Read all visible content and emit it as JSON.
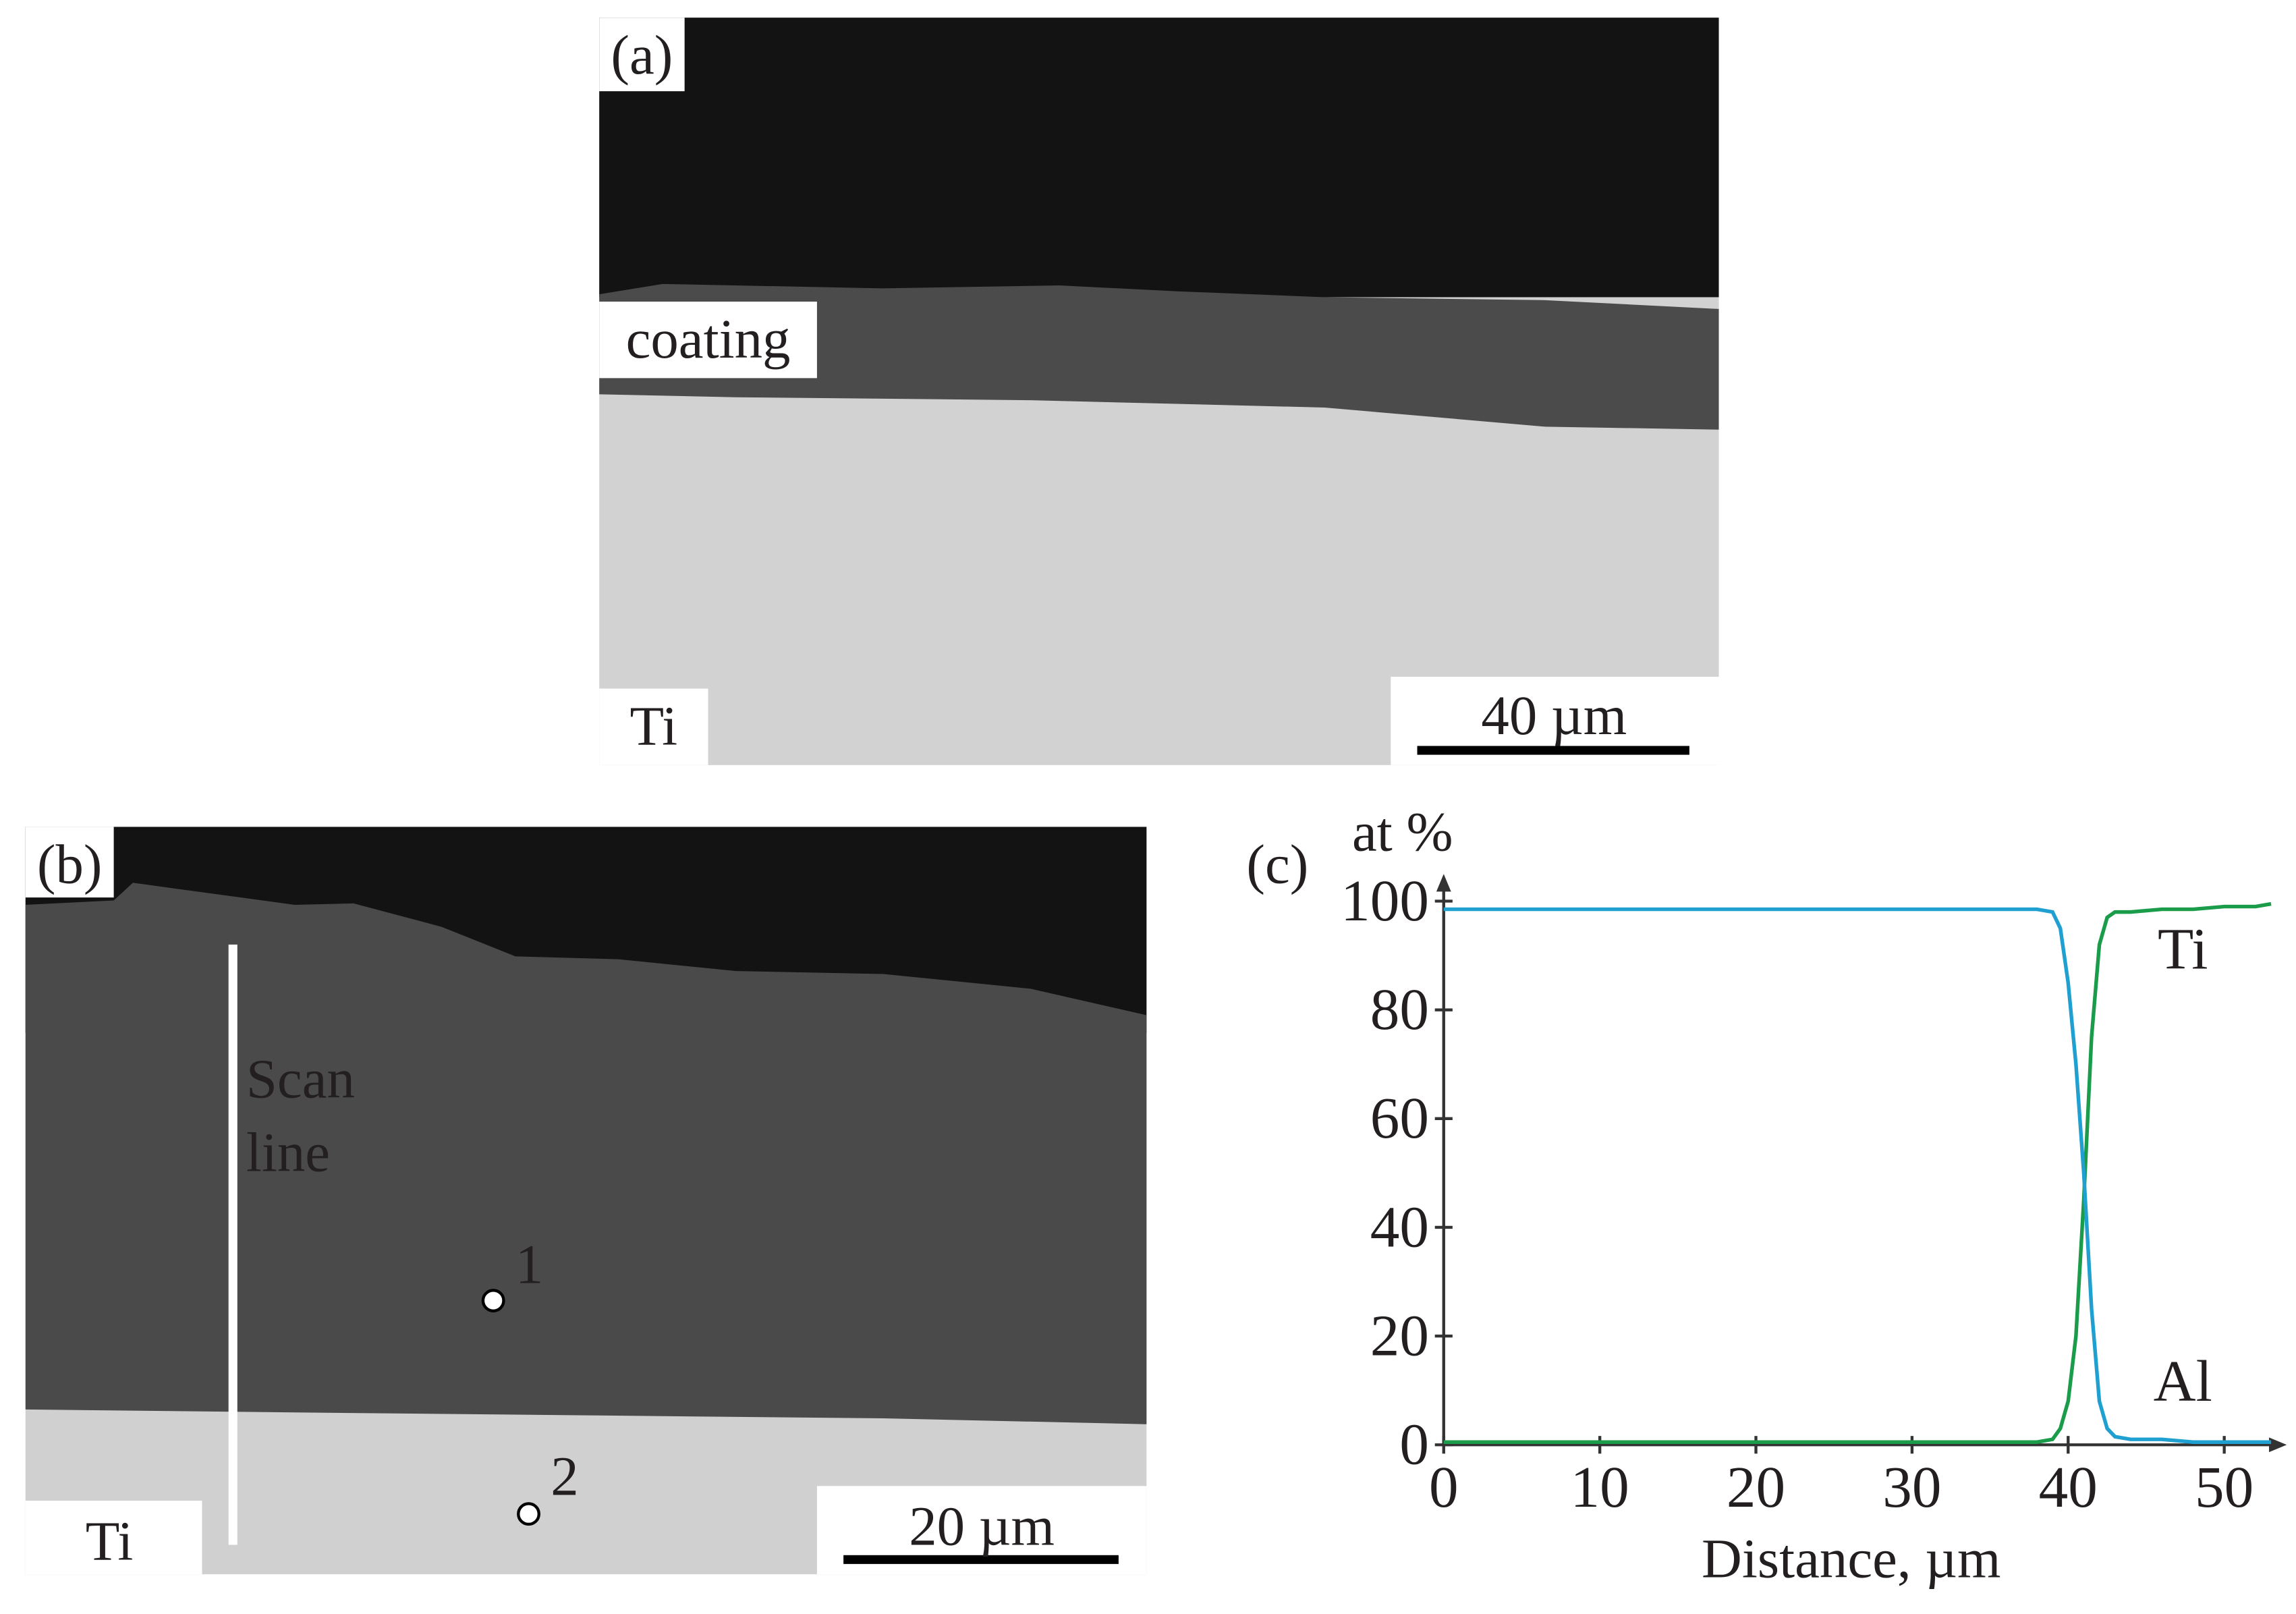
{
  "panels": {
    "a": {
      "label": "(a)",
      "coating": "coating",
      "substrate": "Ti",
      "scale_bar": "40 µm"
    },
    "b": {
      "label": "(b)",
      "scan_line": [
        "Scan",
        "line"
      ],
      "points": [
        "1",
        "2"
      ],
      "substrate": "Ti",
      "scale_bar": "20 µm"
    }
  },
  "chart_data": {
    "type": "line",
    "label": "(c)",
    "xlabel": "Distance, µm",
    "ylabel": "at %",
    "x": [
      0,
      10,
      20,
      30,
      38,
      39,
      39.5,
      40,
      40.5,
      41,
      41.5,
      42,
      42.5,
      43,
      44,
      46,
      48,
      50,
      52,
      53
    ],
    "series": [
      {
        "name": "Ti",
        "color": "#1a9c4a",
        "values": [
          0.5,
          0.5,
          0.5,
          0.5,
          0.5,
          1,
          3,
          8,
          20,
          45,
          75,
          92,
          97,
          98,
          98,
          98.5,
          98.5,
          99,
          99,
          99.5
        ]
      },
      {
        "name": "Al",
        "color": "#1fa0d0",
        "values": [
          98.5,
          98.5,
          98.5,
          98.5,
          98.5,
          98,
          95,
          85,
          70,
          50,
          25,
          8,
          3,
          1.5,
          1,
          1,
          0.5,
          0.5,
          0.5,
          0.5
        ]
      }
    ],
    "xlim": [
      0,
      54
    ],
    "ylim": [
      0,
      105
    ],
    "xticks": [
      0,
      10,
      20,
      30,
      40,
      50
    ],
    "yticks": [
      0,
      20,
      40,
      60,
      80,
      100
    ]
  }
}
